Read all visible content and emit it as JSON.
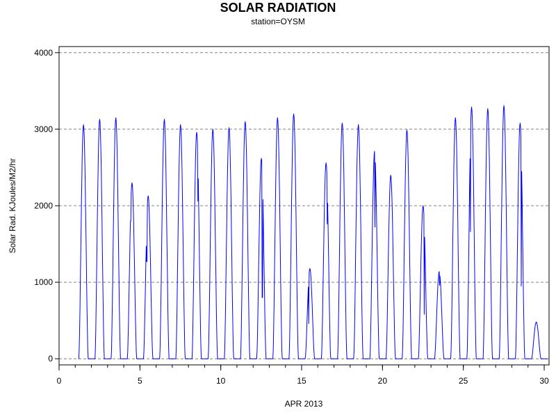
{
  "chart_data": {
    "type": "line",
    "title": "SOLAR RADIATION",
    "subtitle": "station=OYSM",
    "xlabel": "APR 2013",
    "ylabel": "Solar Rad. KJoules/M2/hr",
    "xlim": [
      0,
      30.3
    ],
    "ylim": [
      -80,
      4080
    ],
    "x_ticks": [
      0,
      5,
      10,
      15,
      20,
      25,
      30
    ],
    "x_tick_labels": [
      "0",
      "5",
      "10",
      "15",
      "20",
      "25",
      "30"
    ],
    "x_minor_step": 1,
    "y_ticks": [
      0,
      1000,
      2000,
      3000,
      4000
    ],
    "y_tick_labels": [
      "0",
      "1000",
      "2000",
      "3000",
      "4000"
    ],
    "grid": {
      "y": true,
      "x": false
    },
    "series_color": "#0000ff",
    "series": [
      {
        "daily_peaks": [
          {
            "day": 1,
            "peak": 3060
          },
          {
            "day": 2,
            "peak": 3130
          },
          {
            "day": 3,
            "peak": 3150
          },
          {
            "day": 4,
            "peak": 2300,
            "dips": [
              {
                "at": 0.35,
                "value": 1800
              }
            ]
          },
          {
            "day": 5,
            "peak": 2130,
            "dips": [
              {
                "at": 0.35,
                "value": 1270
              }
            ]
          },
          {
            "day": 6,
            "peak": 3130
          },
          {
            "day": 7,
            "peak": 3060
          },
          {
            "day": 8,
            "peak": 2960,
            "dips": [
              {
                "at": 0.62,
                "value": 2060
              }
            ]
          },
          {
            "day": 9,
            "peak": 3000
          },
          {
            "day": 10,
            "peak": 3020
          },
          {
            "day": 11,
            "peak": 3100
          },
          {
            "day": 12,
            "peak": 2620,
            "dips": [
              {
                "at": 0.6,
                "value": 800
              }
            ]
          },
          {
            "day": 13,
            "peak": 3150
          },
          {
            "day": 14,
            "peak": 3200
          },
          {
            "day": 15,
            "peak": 1180,
            "dips": [
              {
                "at": 0.38,
                "value": 460
              }
            ]
          },
          {
            "day": 16,
            "peak": 2560,
            "dips": [
              {
                "at": 0.62,
                "value": 1760
              }
            ]
          },
          {
            "day": 17,
            "peak": 3080
          },
          {
            "day": 18,
            "peak": 3060
          },
          {
            "day": 19,
            "peak": 2710,
            "dips": [
              {
                "at": 0.55,
                "value": 1720
              }
            ]
          },
          {
            "day": 20,
            "peak": 2400
          },
          {
            "day": 21,
            "peak": 2990
          },
          {
            "day": 22,
            "peak": 2000,
            "dips": [
              {
                "at": 0.62,
                "value": 580
              }
            ]
          },
          {
            "day": 23,
            "peak": 1140,
            "dips": [
              {
                "at": 0.55,
                "value": 960
              }
            ]
          },
          {
            "day": 24,
            "peak": 3150
          },
          {
            "day": 25,
            "peak": 3290,
            "dips": [
              {
                "at": 0.38,
                "value": 1660
              }
            ]
          },
          {
            "day": 26,
            "peak": 3270
          },
          {
            "day": 27,
            "peak": 3310
          },
          {
            "day": 28,
            "peak": 3080,
            "dips": [
              {
                "at": 0.62,
                "value": 950
              }
            ]
          },
          {
            "day": 29,
            "peak": 480
          }
        ]
      }
    ]
  }
}
